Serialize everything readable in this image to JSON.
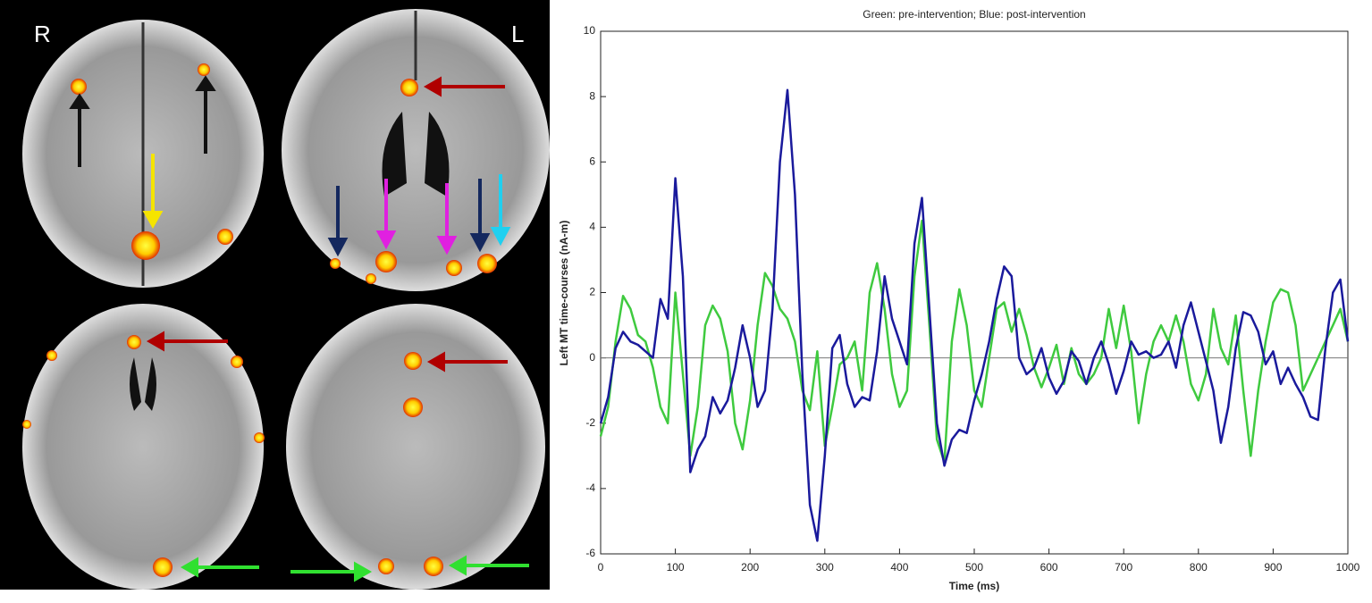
{
  "panel_labels": [
    "R",
    "L"
  ],
  "chart_data": {
    "type": "line",
    "title": "Green: pre-intervention; Blue: post-intervention",
    "xlabel": "Time (ms)",
    "ylabel": "Left MT time-courses (nA-m)",
    "x": [
      0,
      10,
      20,
      30,
      40,
      50,
      60,
      70,
      80,
      90,
      100,
      110,
      120,
      130,
      140,
      150,
      160,
      170,
      180,
      190,
      200,
      210,
      220,
      230,
      240,
      250,
      260,
      270,
      280,
      290,
      300,
      310,
      320,
      330,
      340,
      350,
      360,
      370,
      380,
      390,
      400,
      410,
      420,
      430,
      440,
      450,
      460,
      470,
      480,
      490,
      500,
      510,
      520,
      530,
      540,
      550,
      560,
      570,
      580,
      590,
      600,
      610,
      620,
      630,
      640,
      650,
      660,
      670,
      680,
      690,
      700,
      710,
      720,
      730,
      740,
      750,
      760,
      770,
      780,
      790,
      800,
      810,
      820,
      830,
      840,
      850,
      860,
      870,
      880,
      890,
      900,
      910,
      920,
      930,
      940,
      950,
      960,
      970,
      980,
      990,
      1000
    ],
    "series": [
      {
        "name": "pre-intervention",
        "color": "#3fca3f",
        "values": [
          -2.4,
          -1.5,
          0.5,
          1.9,
          1.5,
          0.7,
          0.5,
          -0.3,
          -1.5,
          -2.0,
          2.0,
          -0.5,
          -3.0,
          -1.5,
          1.0,
          1.6,
          1.2,
          0.2,
          -2.0,
          -2.8,
          -1.3,
          1.0,
          2.6,
          2.2,
          1.5,
          1.2,
          0.5,
          -1.0,
          -1.6,
          0.2,
          -2.7,
          -1.5,
          -0.2,
          0.0,
          0.5,
          -1.0,
          2.0,
          2.9,
          1.5,
          -0.5,
          -1.5,
          -1.0,
          2.5,
          4.2,
          1.0,
          -2.5,
          -3.2,
          0.5,
          2.1,
          1.0,
          -1.0,
          -1.5,
          0.0,
          1.5,
          1.7,
          0.8,
          1.5,
          0.7,
          -0.3,
          -0.9,
          -0.3,
          0.4,
          -0.8,
          0.3,
          -0.5,
          -0.8,
          -0.5,
          0.0,
          1.5,
          0.3,
          1.6,
          0.2,
          -2.0,
          -0.5,
          0.5,
          1.0,
          0.5,
          1.3,
          0.5,
          -0.8,
          -1.3,
          -0.5,
          1.5,
          0.3,
          -0.2,
          1.3,
          -1.0,
          -3.0,
          -1.0,
          0.5,
          1.7,
          2.1,
          2.0,
          1.0,
          -1.0,
          -0.5,
          0.0,
          0.5,
          1.0,
          1.5,
          0.5
        ]
      },
      {
        "name": "post-intervention",
        "color": "#1a1a9c",
        "values": [
          -2.0,
          -1.2,
          0.3,
          0.8,
          0.5,
          0.4,
          0.2,
          0.0,
          1.8,
          1.2,
          5.5,
          2.5,
          -3.5,
          -2.8,
          -2.4,
          -1.2,
          -1.7,
          -1.3,
          -0.3,
          1.0,
          0.0,
          -1.5,
          -1.0,
          1.5,
          6.0,
          8.2,
          5.0,
          -0.5,
          -4.5,
          -5.6,
          -3.0,
          0.3,
          0.7,
          -0.8,
          -1.5,
          -1.2,
          -1.3,
          0.2,
          2.5,
          1.2,
          0.5,
          -0.2,
          3.5,
          4.9,
          1.5,
          -2.0,
          -3.3,
          -2.5,
          -2.2,
          -2.3,
          -1.3,
          -0.5,
          0.5,
          1.8,
          2.8,
          2.5,
          0.0,
          -0.5,
          -0.3,
          0.3,
          -0.6,
          -1.1,
          -0.7,
          0.2,
          -0.1,
          -0.8,
          0.0,
          0.5,
          -0.2,
          -1.1,
          -0.4,
          0.5,
          0.1,
          0.2,
          0.0,
          0.1,
          0.5,
          -0.3,
          1.0,
          1.7,
          0.8,
          -0.1,
          -1.0,
          -2.6,
          -1.5,
          0.3,
          1.4,
          1.3,
          0.8,
          -0.2,
          0.2,
          -0.8,
          -0.3,
          -0.8,
          -1.2,
          -1.8,
          -1.9,
          0.3,
          2.0,
          2.4,
          0.5
        ]
      }
    ],
    "xlim": [
      0,
      1000
    ],
    "xticks": [
      0,
      100,
      200,
      300,
      400,
      500,
      600,
      700,
      800,
      900,
      1000
    ],
    "ylim": [
      -6,
      10
    ],
    "yticks": [
      -6,
      -4,
      -2,
      0,
      2,
      4,
      6,
      8,
      10
    ],
    "zero_line": true
  }
}
